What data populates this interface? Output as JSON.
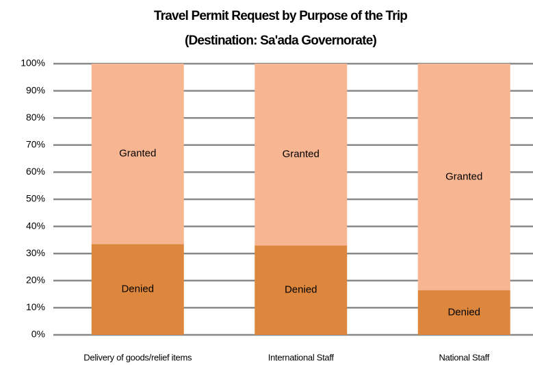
{
  "chart_data": {
    "type": "stacked_bar",
    "title": "Travel Permit Request by Purpose of the Trip",
    "subtitle": "(Destination: Sa'ada Governorate)",
    "categories": [
      "Delivery of goods/relief items",
      "International Staff",
      "National Staff"
    ],
    "series": [
      {
        "name": "Denied",
        "color": "#dd873e",
        "values": [
          33.5,
          33,
          16.5
        ]
      },
      {
        "name": "Granted",
        "color": "#f8b591",
        "values": [
          66.5,
          67,
          83.5
        ]
      }
    ],
    "ylim": [
      0,
      100
    ],
    "yticks": [
      {
        "value": 0,
        "label": "0%"
      },
      {
        "value": 10,
        "label": "10%"
      },
      {
        "value": 20,
        "label": "20%"
      },
      {
        "value": 30,
        "label": "30%"
      },
      {
        "value": 40,
        "label": "40%"
      },
      {
        "value": 50,
        "label": "50%"
      },
      {
        "value": 60,
        "label": "60%"
      },
      {
        "value": 70,
        "label": "70%"
      },
      {
        "value": 80,
        "label": "80%"
      },
      {
        "value": 90,
        "label": "90%"
      },
      {
        "value": 100,
        "label": "100%"
      }
    ],
    "grid": true
  }
}
